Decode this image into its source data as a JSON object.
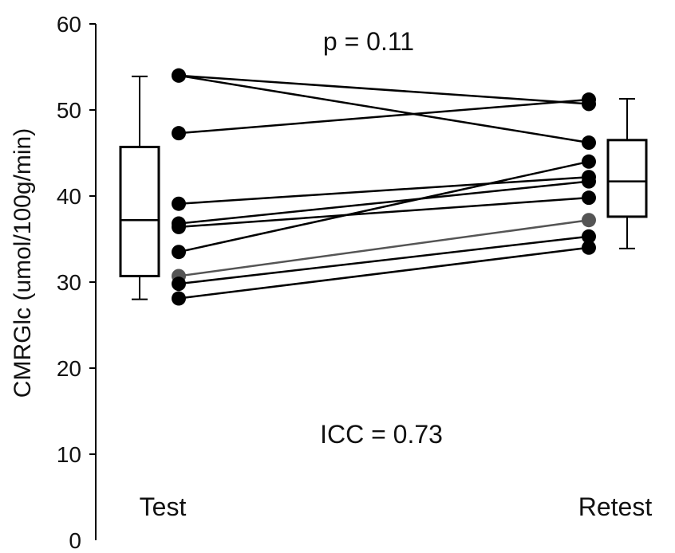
{
  "chart_data": {
    "type": "scatter",
    "ylabel": "CMRGlc (umol/100g/min)",
    "yticks": [
      "0",
      "10",
      "20",
      "30",
      "40",
      "50",
      "60"
    ],
    "ylim": [
      0,
      60
    ],
    "categories": [
      "Test",
      "Retest"
    ],
    "annotations": {
      "p_value": "p = 0.11",
      "icc": "ICC = 0.73"
    },
    "paired_points": [
      {
        "test": 54.0,
        "retest": 46.2,
        "color": "#000000"
      },
      {
        "test": 47.3,
        "retest": 51.2,
        "color": "#000000"
      },
      {
        "test": 39.1,
        "retest": 42.2,
        "color": "#000000"
      },
      {
        "test": 36.8,
        "retest": 41.7,
        "color": "#000000"
      },
      {
        "test": 36.4,
        "retest": 39.8,
        "color": "#000000"
      },
      {
        "test": 33.5,
        "retest": 44.0,
        "color": "#000000"
      },
      {
        "test": 30.7,
        "retest": 37.2,
        "color": "#555555"
      },
      {
        "test": 29.8,
        "retest": 35.3,
        "color": "#000000"
      },
      {
        "test": 28.1,
        "retest": 34.0,
        "color": "#000000"
      },
      {
        "test": 54.0,
        "retest": 50.7,
        "color": "#000000"
      }
    ],
    "boxplots": [
      {
        "group": "Test",
        "min": 28.0,
        "q1": 30.7,
        "median": 37.2,
        "q3": 45.7,
        "max": 53.9
      },
      {
        "group": "Retest",
        "min": 33.9,
        "q1": 37.6,
        "median": 41.7,
        "q3": 46.5,
        "max": 51.3
      }
    ],
    "grid": false,
    "legend": "none"
  }
}
